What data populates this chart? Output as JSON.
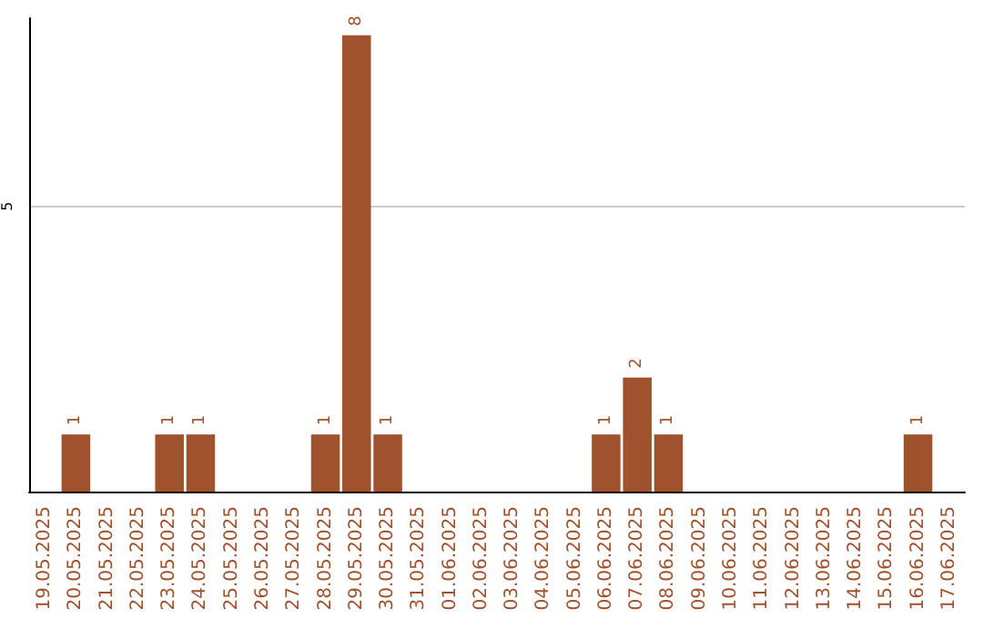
{
  "chart_data": {
    "type": "bar",
    "categories": [
      "19.05.2025",
      "20.05.2025",
      "21.05.2025",
      "22.05.2025",
      "23.05.2025",
      "24.05.2025",
      "25.05.2025",
      "26.05.2025",
      "27.05.2025",
      "28.05.2025",
      "29.05.2025",
      "30.05.2025",
      "31.05.2025",
      "01.06.2025",
      "02.06.2025",
      "03.06.2025",
      "04.06.2025",
      "05.06.2025",
      "06.06.2025",
      "07.06.2025",
      "08.06.2025",
      "09.06.2025",
      "10.06.2025",
      "11.06.2025",
      "12.06.2025",
      "13.06.2025",
      "14.06.2025",
      "15.06.2025",
      "16.06.2025",
      "17.06.2025"
    ],
    "values": [
      0,
      1,
      0,
      0,
      1,
      1,
      0,
      0,
      0,
      1,
      8,
      1,
      0,
      0,
      0,
      0,
      0,
      0,
      1,
      2,
      1,
      0,
      0,
      0,
      0,
      0,
      0,
      0,
      1,
      0
    ],
    "value_labels": [
      null,
      "1",
      null,
      null,
      "1",
      "1",
      null,
      null,
      null,
      "1",
      "8",
      "1",
      null,
      null,
      null,
      null,
      null,
      null,
      "1",
      "2",
      "1",
      null,
      null,
      null,
      null,
      null,
      null,
      null,
      "1",
      null
    ],
    "color": "#a0522d",
    "ylim": [
      0,
      8.3
    ],
    "yticks": [
      5
    ],
    "grid": "y"
  }
}
